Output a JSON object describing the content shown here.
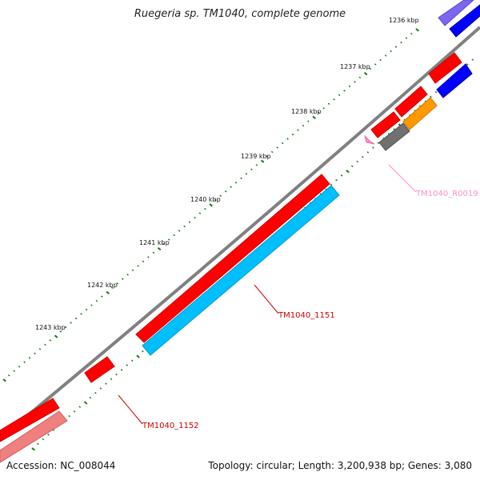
{
  "title": "Ruegeria sp. TM1040, complete genome",
  "footer": {
    "accession": "Accession: NC_008044",
    "summary": "Topology: circular; Length: 3,200,938 bp; Genes: 3,080"
  },
  "colors": {
    "backbone": "#808080",
    "tick": "#1a7a1a",
    "cds_forward": "#ff0000",
    "cds_reverse_1": "#00bfff",
    "cds_reverse_2": "#0000ff",
    "rna": "#ff8fc8",
    "gray": "#707070",
    "orange": "#ff9900",
    "pale_red": "#f08080",
    "purple": "#7b68ee"
  },
  "ticks": [
    {
      "label": "1236 kbp"
    },
    {
      "label": "1237 kbp"
    },
    {
      "label": "1238 kbp"
    },
    {
      "label": "1239 kbp"
    },
    {
      "label": "1240 kbp"
    },
    {
      "label": "1241 kbp"
    },
    {
      "label": "1242 kbp"
    },
    {
      "label": "1243 kbp"
    }
  ],
  "gene_labels": [
    {
      "text": "TM1040_1151",
      "color": "#cc0000"
    },
    {
      "text": "TM1040_1152",
      "color": "#cc0000"
    },
    {
      "text": "TM1040_R0019",
      "color": "#ff8fc8"
    }
  ]
}
